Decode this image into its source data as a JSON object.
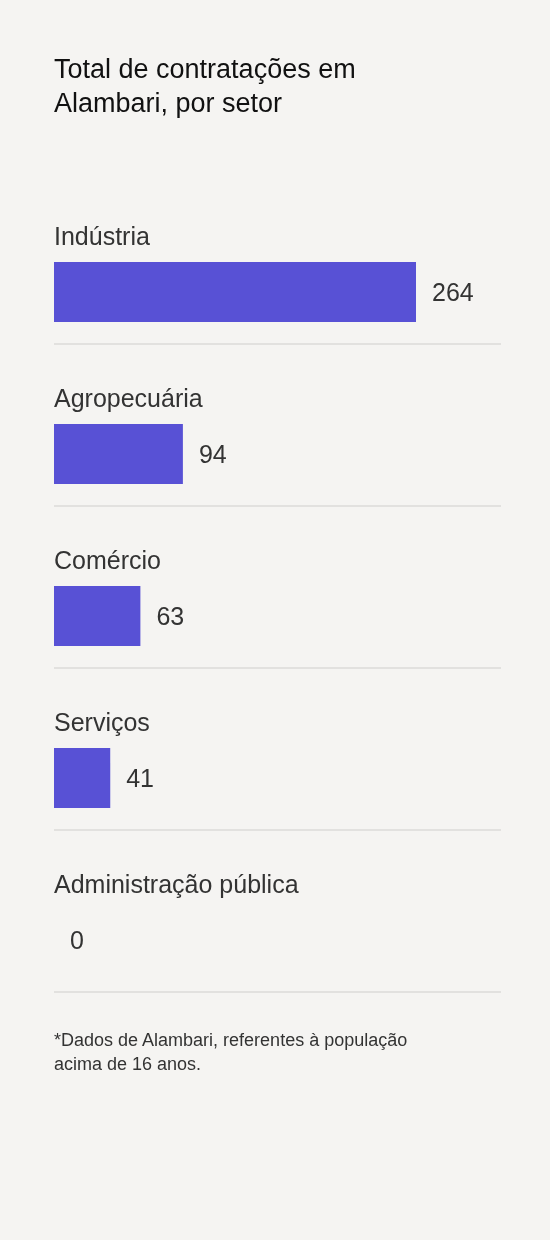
{
  "chart_data": {
    "type": "bar",
    "orientation": "horizontal",
    "title": "Total de contratações em Alambari, por setor",
    "categories": [
      "Indústria",
      "Agropecuária",
      "Comércio",
      "Serviços",
      "Administração pública"
    ],
    "values": [
      264,
      94,
      63,
      41,
      0
    ],
    "color": "#5851d5",
    "data_labels": true,
    "grid": "y",
    "tick_labels": "y",
    "annotations": [
      "*Dados de Alambari, referentes à população acima de 16 anos."
    ]
  }
}
